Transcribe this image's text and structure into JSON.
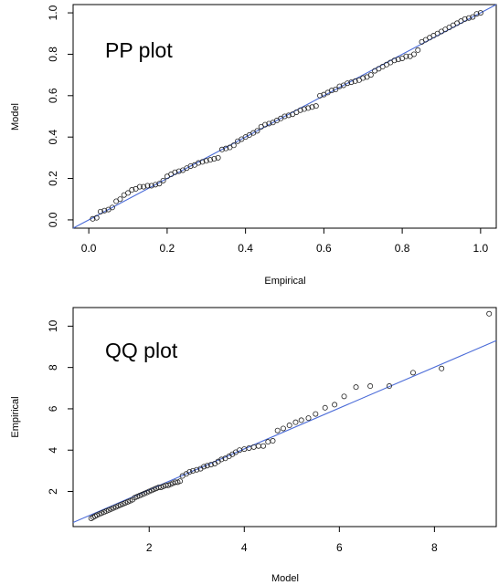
{
  "chart_data": [
    {
      "type": "scatter",
      "title": "PP plot",
      "xlabel": "Empirical",
      "ylabel": "Model",
      "xlim": [
        -0.04,
        1.04
      ],
      "ylim": [
        -0.04,
        1.04
      ],
      "xticks": [
        "0.0",
        "0.2",
        "0.4",
        "0.6",
        "0.8",
        "1.0"
      ],
      "yticks": [
        "0.0",
        "0.2",
        "0.4",
        "0.6",
        "0.8",
        "1.0"
      ],
      "reference_line": {
        "from": [
          -0.04,
          -0.04
        ],
        "to": [
          1.04,
          1.04
        ],
        "color": "#4a6bd8"
      },
      "point_color": "#222222",
      "points": [
        [
          0.01,
          0.005
        ],
        [
          0.02,
          0.01
        ],
        [
          0.03,
          0.04
        ],
        [
          0.04,
          0.045
        ],
        [
          0.05,
          0.05
        ],
        [
          0.06,
          0.06
        ],
        [
          0.07,
          0.09
        ],
        [
          0.08,
          0.1
        ],
        [
          0.09,
          0.12
        ],
        [
          0.1,
          0.13
        ],
        [
          0.11,
          0.145
        ],
        [
          0.12,
          0.15
        ],
        [
          0.13,
          0.16
        ],
        [
          0.14,
          0.16
        ],
        [
          0.15,
          0.165
        ],
        [
          0.16,
          0.165
        ],
        [
          0.17,
          0.17
        ],
        [
          0.18,
          0.175
        ],
        [
          0.19,
          0.19
        ],
        [
          0.2,
          0.21
        ],
        [
          0.21,
          0.22
        ],
        [
          0.22,
          0.23
        ],
        [
          0.23,
          0.235
        ],
        [
          0.24,
          0.24
        ],
        [
          0.25,
          0.25
        ],
        [
          0.26,
          0.26
        ],
        [
          0.27,
          0.265
        ],
        [
          0.28,
          0.275
        ],
        [
          0.29,
          0.28
        ],
        [
          0.3,
          0.285
        ],
        [
          0.31,
          0.29
        ],
        [
          0.32,
          0.295
        ],
        [
          0.33,
          0.3
        ],
        [
          0.34,
          0.34
        ],
        [
          0.35,
          0.345
        ],
        [
          0.36,
          0.35
        ],
        [
          0.37,
          0.36
        ],
        [
          0.38,
          0.38
        ],
        [
          0.39,
          0.39
        ],
        [
          0.4,
          0.4
        ],
        [
          0.41,
          0.41
        ],
        [
          0.42,
          0.42
        ],
        [
          0.43,
          0.43
        ],
        [
          0.44,
          0.45
        ],
        [
          0.45,
          0.46
        ],
        [
          0.46,
          0.465
        ],
        [
          0.47,
          0.47
        ],
        [
          0.48,
          0.48
        ],
        [
          0.49,
          0.49
        ],
        [
          0.5,
          0.5
        ],
        [
          0.51,
          0.505
        ],
        [
          0.52,
          0.51
        ],
        [
          0.53,
          0.52
        ],
        [
          0.54,
          0.53
        ],
        [
          0.55,
          0.535
        ],
        [
          0.56,
          0.54
        ],
        [
          0.57,
          0.545
        ],
        [
          0.58,
          0.55
        ],
        [
          0.59,
          0.6
        ],
        [
          0.6,
          0.605
        ],
        [
          0.61,
          0.615
        ],
        [
          0.62,
          0.625
        ],
        [
          0.63,
          0.63
        ],
        [
          0.64,
          0.645
        ],
        [
          0.65,
          0.65
        ],
        [
          0.66,
          0.66
        ],
        [
          0.67,
          0.665
        ],
        [
          0.68,
          0.67
        ],
        [
          0.69,
          0.675
        ],
        [
          0.7,
          0.685
        ],
        [
          0.71,
          0.69
        ],
        [
          0.72,
          0.7
        ],
        [
          0.73,
          0.72
        ],
        [
          0.74,
          0.73
        ],
        [
          0.75,
          0.74
        ],
        [
          0.76,
          0.75
        ],
        [
          0.77,
          0.76
        ],
        [
          0.78,
          0.77
        ],
        [
          0.79,
          0.775
        ],
        [
          0.8,
          0.78
        ],
        [
          0.81,
          0.79
        ],
        [
          0.82,
          0.79
        ],
        [
          0.83,
          0.8
        ],
        [
          0.84,
          0.82
        ],
        [
          0.85,
          0.86
        ],
        [
          0.86,
          0.87
        ],
        [
          0.87,
          0.88
        ],
        [
          0.88,
          0.89
        ],
        [
          0.89,
          0.9
        ],
        [
          0.9,
          0.91
        ],
        [
          0.91,
          0.92
        ],
        [
          0.92,
          0.93
        ],
        [
          0.93,
          0.94
        ],
        [
          0.94,
          0.95
        ],
        [
          0.95,
          0.96
        ],
        [
          0.96,
          0.97
        ],
        [
          0.97,
          0.975
        ],
        [
          0.98,
          0.98
        ],
        [
          0.99,
          0.995
        ],
        [
          1.0,
          1.0
        ]
      ]
    },
    {
      "type": "scatter",
      "title": "QQ plot",
      "xlabel": "Model",
      "ylabel": "Empirical",
      "xlim": [
        0.4,
        9.3
      ],
      "ylim": [
        0.3,
        10.9
      ],
      "xticks": [
        "2",
        "4",
        "6",
        "8"
      ],
      "yticks": [
        "2",
        "4",
        "6",
        "8",
        "10"
      ],
      "reference_line": {
        "from": [
          0.4,
          0.5
        ],
        "to": [
          9.3,
          9.3
        ],
        "color": "#4a6bd8"
      },
      "point_color": "#222222",
      "points": [
        [
          0.78,
          0.7
        ],
        [
          0.82,
          0.75
        ],
        [
          0.86,
          0.8
        ],
        [
          0.9,
          0.85
        ],
        [
          0.95,
          0.9
        ],
        [
          1.0,
          0.95
        ],
        [
          1.05,
          1.0
        ],
        [
          1.1,
          1.05
        ],
        [
          1.15,
          1.1
        ],
        [
          1.2,
          1.15
        ],
        [
          1.25,
          1.2
        ],
        [
          1.3,
          1.25
        ],
        [
          1.35,
          1.3
        ],
        [
          1.4,
          1.35
        ],
        [
          1.45,
          1.4
        ],
        [
          1.5,
          1.45
        ],
        [
          1.55,
          1.5
        ],
        [
          1.6,
          1.55
        ],
        [
          1.65,
          1.6
        ],
        [
          1.7,
          1.7
        ],
        [
          1.75,
          1.75
        ],
        [
          1.8,
          1.8
        ],
        [
          1.85,
          1.85
        ],
        [
          1.9,
          1.9
        ],
        [
          1.95,
          1.95
        ],
        [
          2.0,
          2.0
        ],
        [
          2.05,
          2.05
        ],
        [
          2.1,
          2.1
        ],
        [
          2.15,
          2.15
        ],
        [
          2.2,
          2.2
        ],
        [
          2.25,
          2.2
        ],
        [
          2.3,
          2.25
        ],
        [
          2.35,
          2.3
        ],
        [
          2.4,
          2.3
        ],
        [
          2.45,
          2.35
        ],
        [
          2.5,
          2.4
        ],
        [
          2.55,
          2.45
        ],
        [
          2.6,
          2.45
        ],
        [
          2.65,
          2.5
        ],
        [
          2.7,
          2.75
        ],
        [
          2.78,
          2.85
        ],
        [
          2.85,
          2.95
        ],
        [
          2.92,
          3.0
        ],
        [
          3.0,
          3.05
        ],
        [
          3.08,
          3.1
        ],
        [
          3.15,
          3.2
        ],
        [
          3.22,
          3.25
        ],
        [
          3.3,
          3.3
        ],
        [
          3.38,
          3.35
        ],
        [
          3.45,
          3.45
        ],
        [
          3.52,
          3.55
        ],
        [
          3.6,
          3.6
        ],
        [
          3.68,
          3.7
        ],
        [
          3.75,
          3.8
        ],
        [
          3.82,
          3.9
        ],
        [
          3.9,
          4.0
        ],
        [
          4.0,
          4.05
        ],
        [
          4.1,
          4.1
        ],
        [
          4.2,
          4.15
        ],
        [
          4.3,
          4.2
        ],
        [
          4.4,
          4.2
        ],
        [
          4.5,
          4.4
        ],
        [
          4.6,
          4.45
        ],
        [
          4.7,
          4.95
        ],
        [
          4.82,
          5.05
        ],
        [
          4.95,
          5.2
        ],
        [
          5.08,
          5.35
        ],
        [
          5.2,
          5.45
        ],
        [
          5.35,
          5.55
        ],
        [
          5.5,
          5.75
        ],
        [
          5.7,
          6.05
        ],
        [
          5.9,
          6.2
        ],
        [
          6.1,
          6.6
        ],
        [
          6.35,
          7.05
        ],
        [
          6.65,
          7.1
        ],
        [
          7.05,
          7.1
        ],
        [
          7.55,
          7.75
        ],
        [
          8.15,
          7.95
        ],
        [
          9.15,
          10.6
        ]
      ]
    }
  ]
}
